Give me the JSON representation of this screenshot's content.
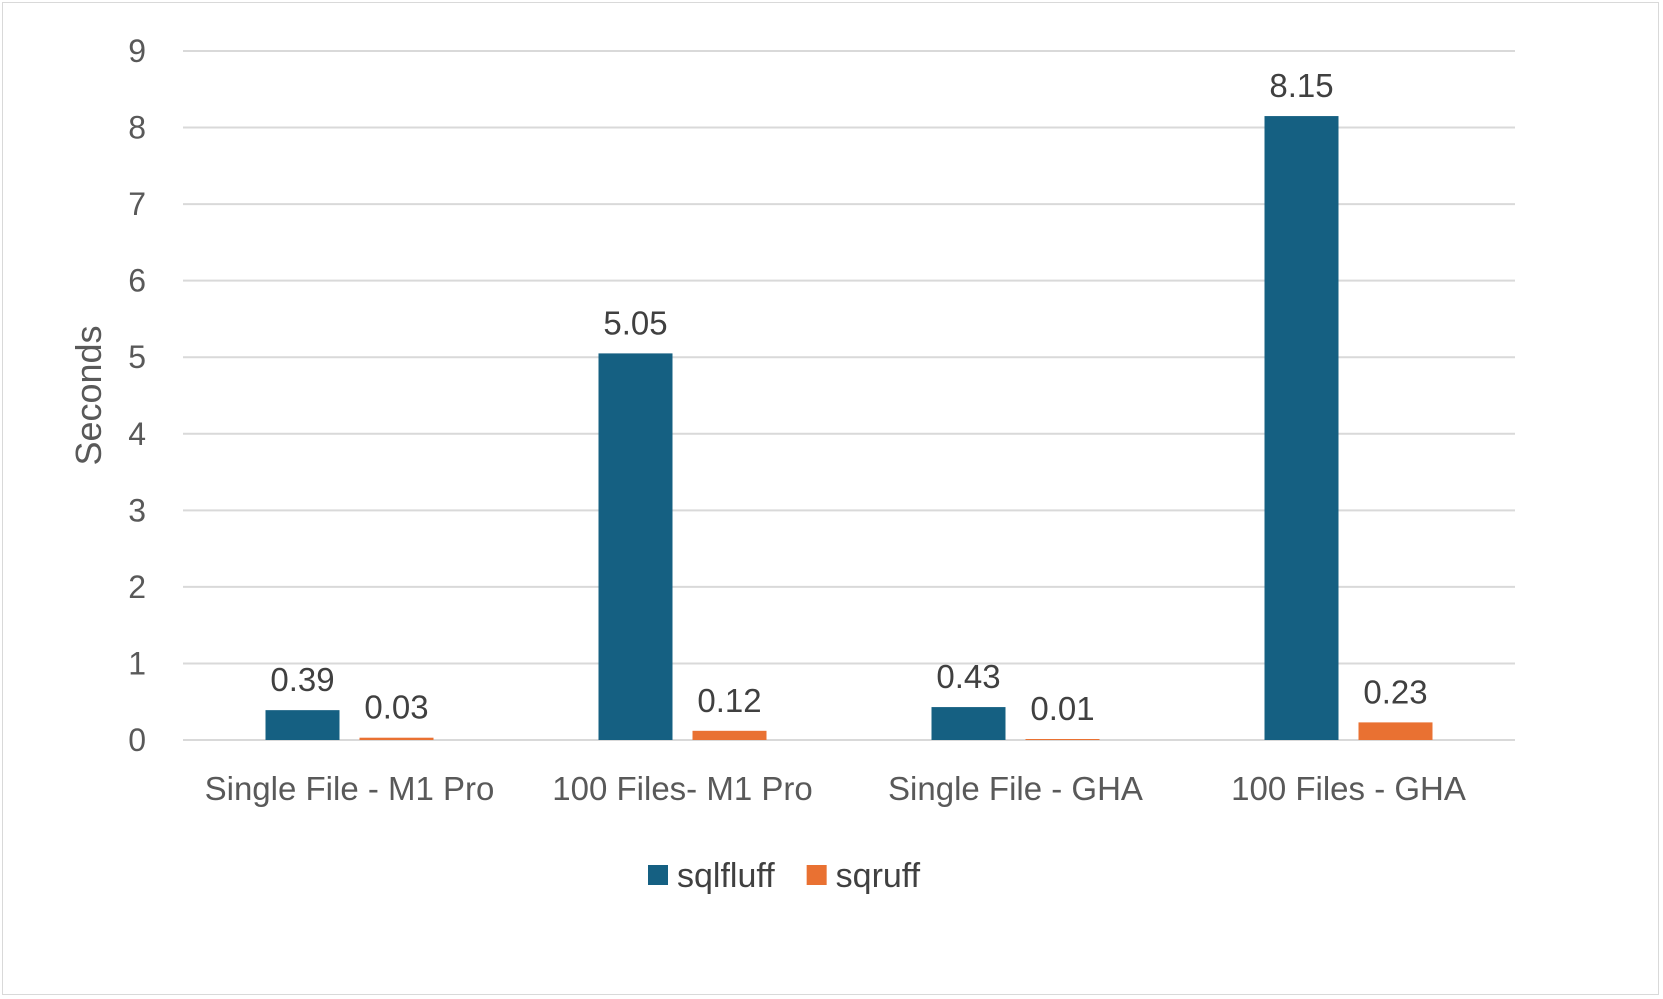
{
  "chart_data": {
    "type": "bar",
    "title": "",
    "xlabel": "",
    "ylabel": "Seconds",
    "ylim": [
      0,
      9
    ],
    "yticks": [
      0,
      1,
      2,
      3,
      4,
      5,
      6,
      7,
      8,
      9
    ],
    "grid": true,
    "legend_position": "bottom",
    "categories": [
      "Single File - M1 Pro",
      "100 Files- M1 Pro",
      "Single File - GHA",
      "100 Files - GHA"
    ],
    "series": [
      {
        "name": "sqlfluff",
        "color": "#156082",
        "values": [
          0.39,
          5.05,
          0.43,
          8.15
        ]
      },
      {
        "name": "sqruff",
        "color": "#E97132",
        "values": [
          0.03,
          0.12,
          0.01,
          0.23
        ]
      }
    ],
    "data_labels": true
  }
}
